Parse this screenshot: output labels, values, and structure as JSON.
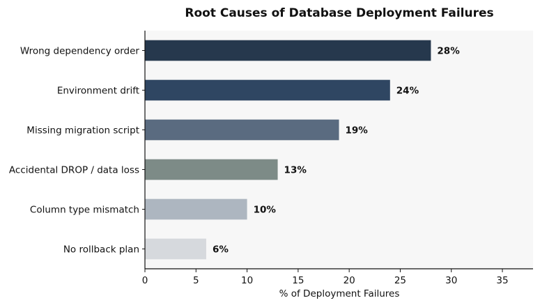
{
  "chart_data": {
    "type": "bar",
    "orientation": "horizontal",
    "title": "Root Causes of Database Deployment Failures",
    "xlabel": "% of Deployment Failures",
    "ylabel": "",
    "xlim": [
      0,
      38
    ],
    "xticks": [
      0,
      5,
      10,
      15,
      20,
      25,
      30,
      35
    ],
    "grid": false,
    "categories": [
      "Wrong dependency order",
      "Environment drift",
      "Missing migration script",
      "Accidental DROP / data loss",
      "Column type mismatch",
      "No rollback plan"
    ],
    "values": [
      28,
      24,
      19,
      13,
      10,
      6
    ],
    "value_labels": [
      "28%",
      "24%",
      "19%",
      "13%",
      "10%",
      "6%"
    ],
    "colors": [
      "#26384d",
      "#2f4662",
      "#5a6b80",
      "#7d8b87",
      "#adb6c0",
      "#d6d9dd"
    ],
    "plot_background": "#f7f7f7"
  }
}
